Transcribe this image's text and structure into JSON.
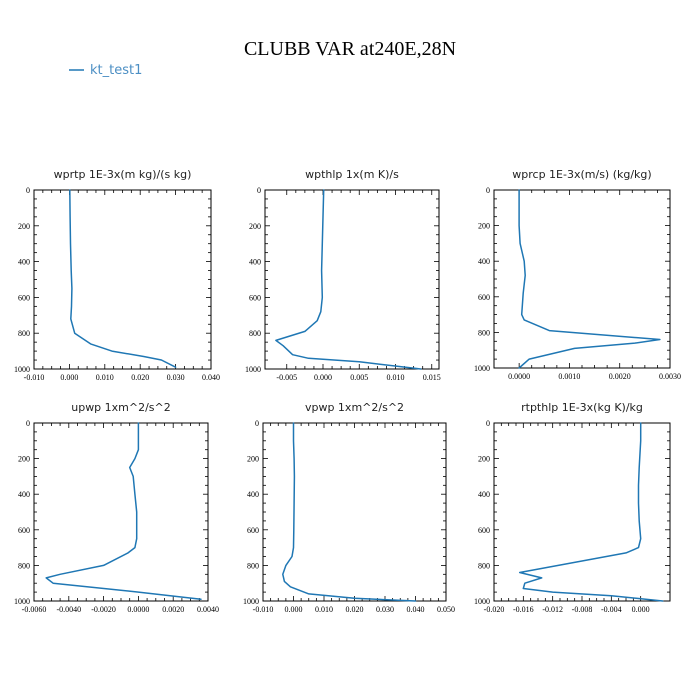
{
  "figure": {
    "title": "CLUBB VAR at240E,28N",
    "line_color": "#1f77b4",
    "legend": {
      "label": "kt_test1"
    }
  },
  "chart_data": [
    {
      "type": "line",
      "title": "wprtp  1E-3x(m kg)/(s kg)",
      "xlim": [
        -0.01,
        0.04
      ],
      "ylim": [
        1000,
        0
      ],
      "xticks": [
        "-0.010",
        "0.000",
        "0.010",
        "0.020",
        "0.030",
        "0.040"
      ],
      "yticks": [
        "0",
        "200",
        "400",
        "600",
        "800",
        "1000"
      ],
      "series": [
        {
          "name": "kt_test1",
          "x": [
            0.0001,
            0.0002,
            0.0003,
            0.0005,
            0.0007,
            0.0006,
            0.0004,
            0.0015,
            0.006,
            0.012,
            0.021,
            0.026,
            0.03
          ],
          "y": [
            0,
            150,
            300,
            450,
            550,
            650,
            720,
            800,
            860,
            900,
            930,
            950,
            990
          ]
        }
      ]
    },
    {
      "type": "line",
      "title": "wpthlp  1x(m K)/s",
      "xlim": [
        -0.008,
        0.016
      ],
      "ylim": [
        1000,
        0
      ],
      "xticks": [
        "-0.005",
        "0.000",
        "0.005",
        "0.010",
        "0.015"
      ],
      "yticks": [
        "0",
        "200",
        "400",
        "600",
        "800",
        "1000"
      ],
      "series": [
        {
          "name": "kt_test1",
          "x": [
            0.0001,
            0.0,
            -0.0001,
            -0.0002,
            -0.0001,
            -0.0003,
            -0.0008,
            -0.0025,
            -0.0065,
            -0.0055,
            -0.0042,
            -0.002,
            0.005,
            0.0135
          ],
          "y": [
            0,
            150,
            300,
            450,
            600,
            680,
            730,
            790,
            840,
            870,
            920,
            940,
            960,
            1000
          ]
        }
      ]
    },
    {
      "type": "line",
      "title": "wprcp  1E-3x(m/s) (kg/kg)",
      "xlim": [
        -0.0005,
        0.003
      ],
      "ylim": [
        1000,
        0
      ],
      "xticks": [
        "0.0000",
        "0.0010",
        "0.0020",
        "0.0030"
      ],
      "yticks": [
        "0",
        "200",
        "400",
        "600",
        "800",
        "1000"
      ],
      "series": [
        {
          "name": "kt_test1",
          "x": [
            0.0,
            0.0,
            2e-05,
            0.0001,
            0.00012,
            8e-05,
            5e-05,
            0.0001,
            0.0006,
            0.0028,
            0.0023,
            0.0011,
            0.0002,
            0.0
          ],
          "y": [
            0,
            200,
            300,
            400,
            480,
            580,
            700,
            730,
            790,
            840,
            860,
            890,
            950,
            1000
          ]
        }
      ]
    },
    {
      "type": "line",
      "title": "upwp  1xm^2/s^2",
      "xlim": [
        -0.006,
        0.004
      ],
      "ylim": [
        1000,
        0
      ],
      "xticks": [
        "-0.0060",
        "-0.0040",
        "-0.0020",
        "0.0000",
        "0.0020",
        "0.0040"
      ],
      "yticks": [
        "0",
        "200",
        "400",
        "600",
        "800",
        "1000"
      ],
      "series": [
        {
          "name": "kt_test1",
          "x": [
            0.0,
            0.0,
            -0.0002,
            -0.0005,
            -0.0003,
            -0.0002,
            -0.0001,
            -0.0001,
            -0.0002,
            -0.0006,
            -0.002,
            -0.0045,
            -0.0053,
            -0.0049,
            0.0,
            0.0036
          ],
          "y": [
            0,
            150,
            200,
            250,
            300,
            400,
            500,
            650,
            700,
            730,
            800,
            850,
            870,
            900,
            950,
            990
          ]
        }
      ]
    },
    {
      "type": "line",
      "title": "vpwp  1xm^2/s^2",
      "xlim": [
        -0.01,
        0.05
      ],
      "ylim": [
        1000,
        0
      ],
      "xticks": [
        "-0.010",
        "0.000",
        "0.010",
        "0.020",
        "0.030",
        "0.040",
        "0.050"
      ],
      "yticks": [
        "0",
        "200",
        "400",
        "600",
        "800",
        "1000"
      ],
      "series": [
        {
          "name": "kt_test1",
          "x": [
            0.0,
            0.0,
            0.0002,
            0.0003,
            0.0002,
            0.0001,
            0.0,
            -0.0005,
            -0.0025,
            -0.0035,
            -0.003,
            -0.001,
            0.005,
            0.02,
            0.04
          ],
          "y": [
            0,
            100,
            200,
            300,
            450,
            600,
            700,
            750,
            800,
            850,
            890,
            920,
            960,
            985,
            1000
          ]
        }
      ]
    },
    {
      "type": "line",
      "title": "rtpthlp  1E-3x(kg K)/kg",
      "xlim": [
        -0.02,
        0.004
      ],
      "ylim": [
        1000,
        0
      ],
      "xticks": [
        "-0.020",
        "-0.016",
        "-0.012",
        "-0.008",
        "-0.004",
        "0.000"
      ],
      "yticks": [
        "0",
        "200",
        "400",
        "600",
        "800",
        "1000"
      ],
      "series": [
        {
          "name": "kt_test1",
          "x": [
            0.0,
            0.0,
            -0.0002,
            -0.0003,
            -0.0003,
            -0.0002,
            -0.0,
            -0.0003,
            -0.002,
            -0.0165,
            -0.0135,
            -0.0158,
            -0.016,
            -0.012,
            -0.004,
            0.003
          ],
          "y": [
            0,
            100,
            250,
            350,
            450,
            550,
            650,
            700,
            730,
            840,
            870,
            900,
            930,
            950,
            970,
            1000
          ]
        }
      ]
    }
  ]
}
